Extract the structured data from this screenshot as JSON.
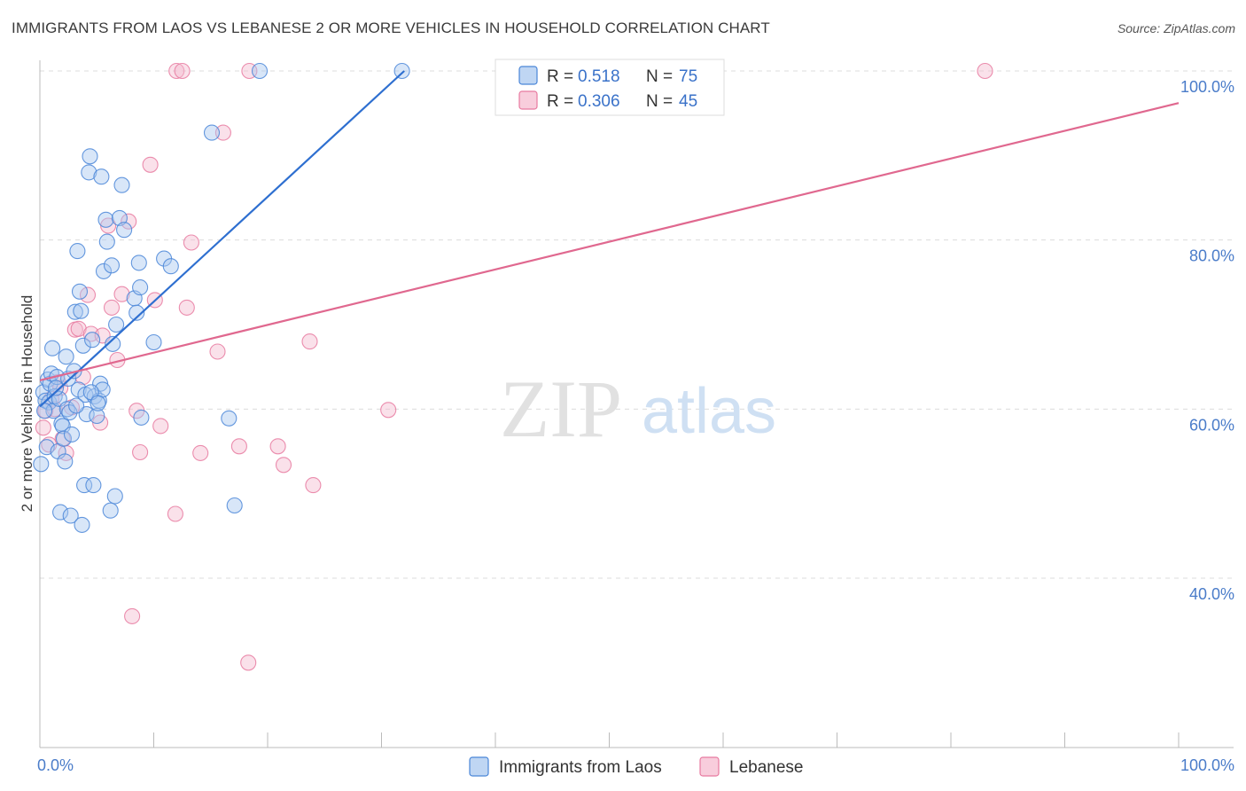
{
  "title": "IMMIGRANTS FROM LAOS VS LEBANESE 2 OR MORE VEHICLES IN HOUSEHOLD CORRELATION CHART",
  "source": "Source: ZipAtlas.com",
  "watermark": {
    "zip": "ZIP",
    "atlas": "atlas"
  },
  "colors": {
    "blue": "#4a86d8",
    "blue_fill": "#a9c8ef",
    "blue_line": "#2e6fd0",
    "pink": "#e87aa0",
    "pink_fill": "#f5bcd0",
    "pink_line": "#e0688f",
    "axis_text": "#4a7cc9",
    "grid": "#dcdcdc"
  },
  "legend_box": {
    "rows": [
      {
        "r_label": "R =",
        "r_value": "0.518",
        "n_label": "N =",
        "n_value": "75"
      },
      {
        "r_label": "R =",
        "r_value": "0.306",
        "n_label": "N =",
        "n_value": "45"
      }
    ]
  },
  "chart_data": {
    "type": "scatter",
    "xlabel": "",
    "ylabel": "2 or more Vehicles in Household",
    "xlim": [
      0,
      100
    ],
    "ylim": [
      20,
      103
    ],
    "x_tick_labels": [
      "0.0%",
      "100.0%"
    ],
    "y_ticks": [
      40,
      60,
      80,
      100
    ],
    "y_tick_labels": [
      "40.0%",
      "60.0%",
      "80.0%",
      "100.0%"
    ],
    "grid": true,
    "legend": [
      "Immigrants from Laos",
      "Lebanese"
    ],
    "series": [
      {
        "name": "Immigrants from Laos",
        "color": "blue",
        "r": 0.518,
        "n": 75,
        "trend": {
          "x": [
            0.0,
            32.0
          ],
          "y": [
            60.3,
            100.0
          ]
        },
        "points": [
          [
            0.1,
            53.5
          ],
          [
            0.3,
            62.0
          ],
          [
            0.5,
            61.0
          ],
          [
            0.6,
            55.5
          ],
          [
            0.7,
            63.5
          ],
          [
            0.8,
            60.8
          ],
          [
            0.9,
            63.0
          ],
          [
            1.0,
            64.2
          ],
          [
            1.1,
            67.2
          ],
          [
            1.2,
            59.8
          ],
          [
            1.3,
            61.5
          ],
          [
            1.5,
            63.8
          ],
          [
            1.6,
            55.0
          ],
          [
            1.7,
            61.2
          ],
          [
            1.8,
            47.8
          ],
          [
            1.9,
            58.3
          ],
          [
            2.0,
            58.0
          ],
          [
            2.1,
            56.5
          ],
          [
            2.2,
            53.8
          ],
          [
            2.3,
            66.2
          ],
          [
            2.4,
            60.0
          ],
          [
            2.5,
            63.6
          ],
          [
            2.7,
            47.4
          ],
          [
            2.8,
            57.0
          ],
          [
            3.0,
            64.5
          ],
          [
            3.1,
            71.5
          ],
          [
            3.3,
            78.7
          ],
          [
            3.4,
            62.3
          ],
          [
            3.5,
            73.9
          ],
          [
            3.6,
            71.6
          ],
          [
            3.7,
            46.3
          ],
          [
            3.8,
            67.5
          ],
          [
            3.9,
            51.0
          ],
          [
            4.0,
            61.7
          ],
          [
            4.1,
            59.4
          ],
          [
            4.3,
            88.0
          ],
          [
            4.4,
            89.9
          ],
          [
            4.6,
            68.2
          ],
          [
            4.7,
            51.0
          ],
          [
            4.8,
            61.5
          ],
          [
            5.0,
            59.2
          ],
          [
            5.2,
            61.0
          ],
          [
            5.3,
            63.0
          ],
          [
            5.4,
            87.5
          ],
          [
            5.5,
            62.3
          ],
          [
            5.6,
            76.3
          ],
          [
            5.8,
            82.4
          ],
          [
            5.9,
            79.8
          ],
          [
            6.2,
            48.0
          ],
          [
            6.3,
            77.0
          ],
          [
            6.4,
            67.7
          ],
          [
            6.6,
            49.7
          ],
          [
            6.7,
            70.0
          ],
          [
            7.0,
            82.6
          ],
          [
            7.2,
            86.5
          ],
          [
            7.4,
            81.2
          ],
          [
            8.3,
            73.1
          ],
          [
            8.5,
            71.4
          ],
          [
            8.7,
            77.3
          ],
          [
            8.8,
            74.4
          ],
          [
            8.9,
            59.0
          ],
          [
            10.0,
            67.9
          ],
          [
            10.9,
            77.8
          ],
          [
            11.5,
            76.9
          ],
          [
            15.1,
            92.7
          ],
          [
            16.6,
            58.9
          ],
          [
            17.1,
            48.6
          ],
          [
            19.3,
            100.0
          ],
          [
            31.8,
            100.0
          ],
          [
            0.4,
            59.8
          ],
          [
            1.4,
            62.5
          ],
          [
            2.6,
            59.6
          ],
          [
            3.2,
            60.4
          ],
          [
            4.5,
            62.0
          ],
          [
            5.1,
            60.7
          ]
        ]
      },
      {
        "name": "Lebanese",
        "color": "pink",
        "r": 0.306,
        "n": 45,
        "trend": {
          "x": [
            0.0,
            100.0
          ],
          "y": [
            63.4,
            96.2
          ]
        },
        "points": [
          [
            0.3,
            57.8
          ],
          [
            0.5,
            59.8
          ],
          [
            0.8,
            55.8
          ],
          [
            1.0,
            61.2
          ],
          [
            1.3,
            60.0
          ],
          [
            1.6,
            63.2
          ],
          [
            1.8,
            62.5
          ],
          [
            2.0,
            56.5
          ],
          [
            2.3,
            54.8
          ],
          [
            2.8,
            60.2
          ],
          [
            3.1,
            69.4
          ],
          [
            3.4,
            69.5
          ],
          [
            3.8,
            63.8
          ],
          [
            4.2,
            73.5
          ],
          [
            4.5,
            68.9
          ],
          [
            5.3,
            58.4
          ],
          [
            5.5,
            68.7
          ],
          [
            6.0,
            81.7
          ],
          [
            6.3,
            72.0
          ],
          [
            6.8,
            65.8
          ],
          [
            7.2,
            73.6
          ],
          [
            7.8,
            82.2
          ],
          [
            8.1,
            35.5
          ],
          [
            8.5,
            59.8
          ],
          [
            8.8,
            54.9
          ],
          [
            9.7,
            88.9
          ],
          [
            10.1,
            72.9
          ],
          [
            10.6,
            58.0
          ],
          [
            11.9,
            47.6
          ],
          [
            12.0,
            100.0
          ],
          [
            12.5,
            100.0
          ],
          [
            12.9,
            72.0
          ],
          [
            13.3,
            79.7
          ],
          [
            14.1,
            54.8
          ],
          [
            15.6,
            66.8
          ],
          [
            16.1,
            92.7
          ],
          [
            17.5,
            55.6
          ],
          [
            18.3,
            30.0
          ],
          [
            18.4,
            100.0
          ],
          [
            20.9,
            55.6
          ],
          [
            21.4,
            53.4
          ],
          [
            23.7,
            68.0
          ],
          [
            24.0,
            51.0
          ],
          [
            30.6,
            59.9
          ],
          [
            83.0,
            100.0
          ]
        ]
      }
    ]
  }
}
